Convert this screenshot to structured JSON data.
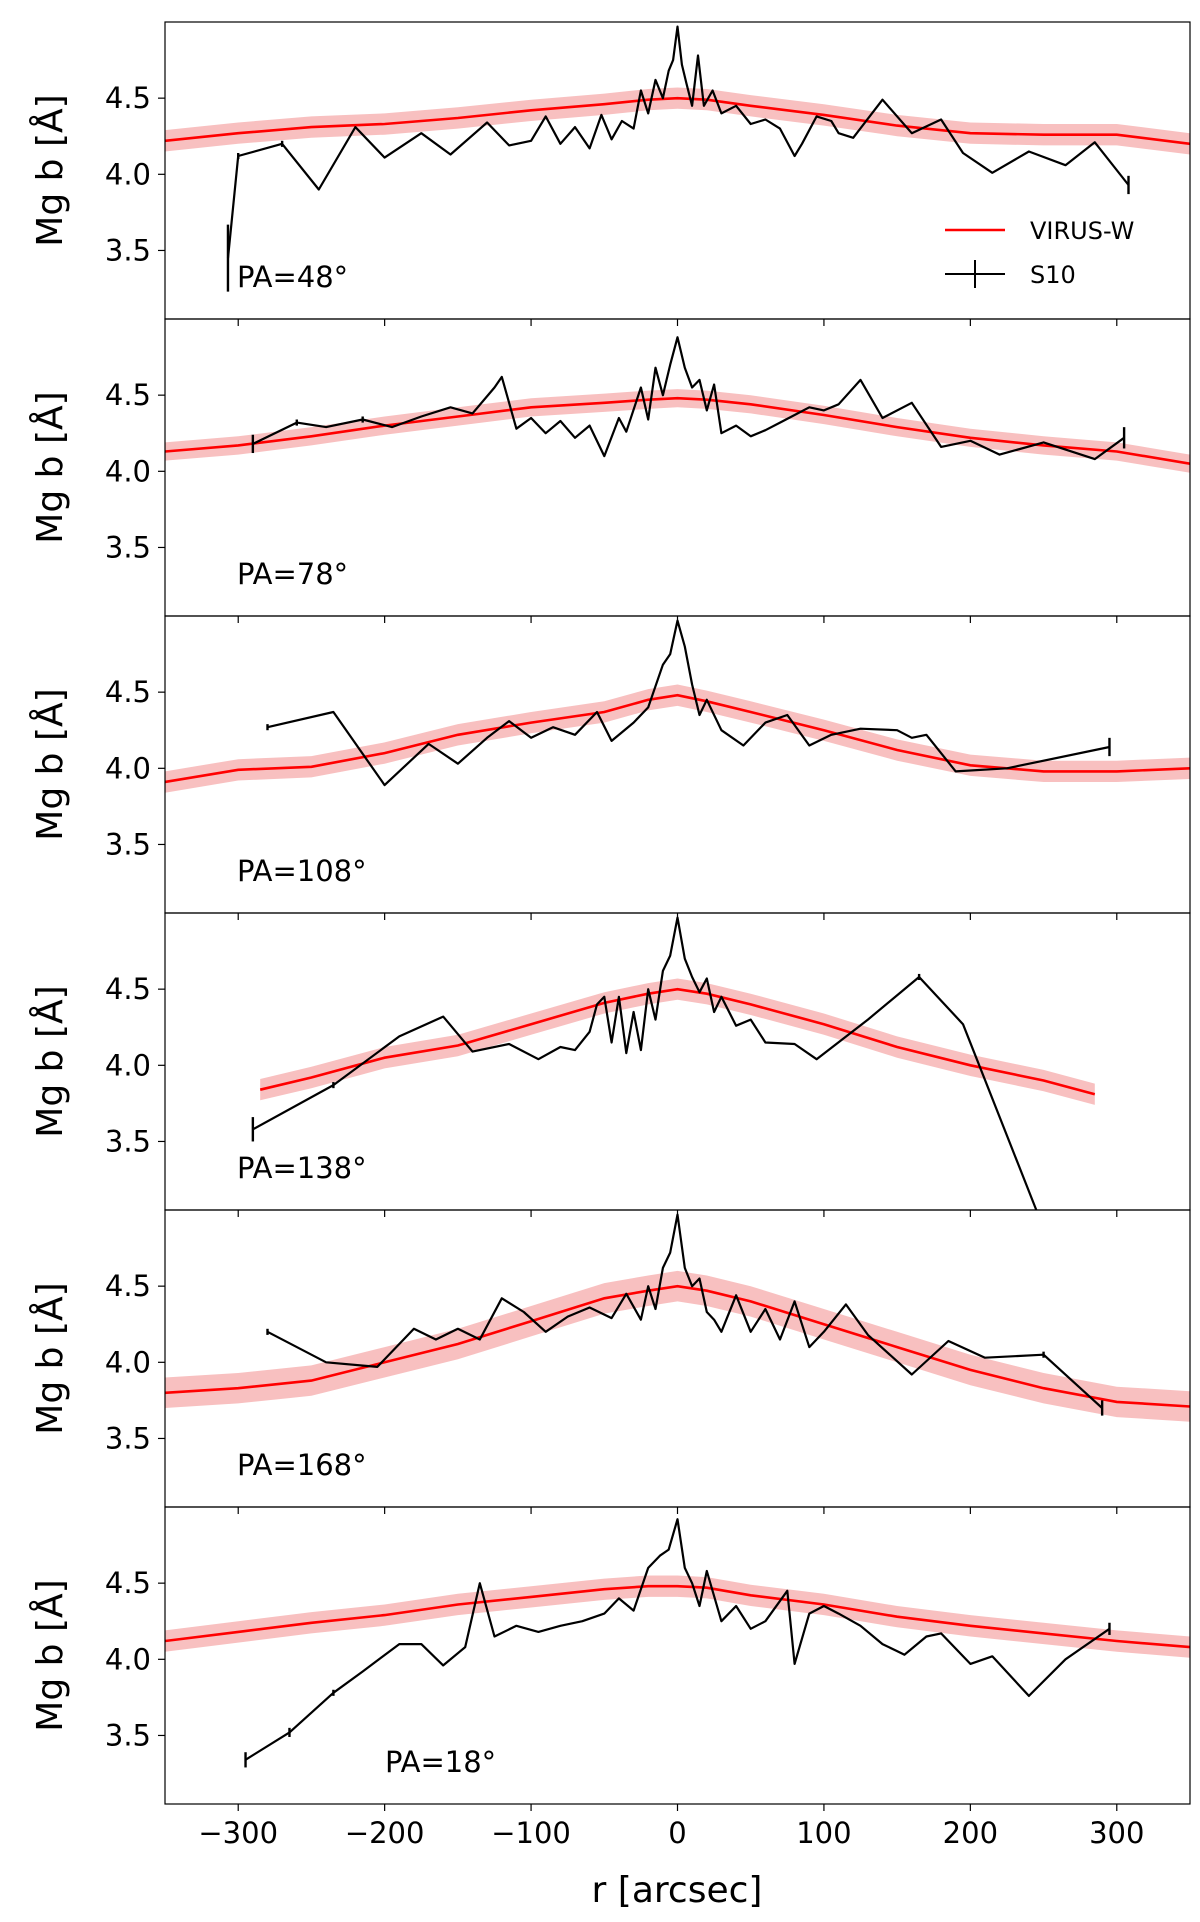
{
  "chart_data": {
    "type": "line",
    "shared_x": {
      "label": "r [arcsec]",
      "xlim": [
        -350,
        350
      ],
      "ticks": [
        -300,
        -200,
        -100,
        0,
        100,
        200,
        300
      ],
      "tick_labels": [
        "−300",
        "−200",
        "−100",
        "0",
        "100",
        "200",
        "300"
      ]
    },
    "ylabel": "Mg b [Å]",
    "ylim": [
      3.05,
      5.0
    ],
    "yticks": [
      3.5,
      4.0,
      4.5
    ],
    "ytick_labels": [
      "3.5",
      "4.0",
      "4.5"
    ],
    "legend": {
      "position": "lower-right of first panel",
      "entries": [
        {
          "label": "VIRUS-W",
          "color": "#ff0000",
          "style": "line"
        },
        {
          "label": "S10",
          "color": "#000000",
          "style": "errorbar"
        }
      ]
    },
    "colors": {
      "model": "#ff0000",
      "band": "#f7b5b5",
      "data": "#000000"
    },
    "panels": [
      {
        "pa_label": "PA=48°",
        "model": {
          "x": [
            -350,
            -300,
            -250,
            -200,
            -150,
            -100,
            -50,
            -20,
            0,
            20,
            50,
            100,
            150,
            200,
            250,
            300,
            350
          ],
          "y": [
            4.22,
            4.27,
            4.31,
            4.33,
            4.37,
            4.42,
            4.46,
            4.49,
            4.5,
            4.49,
            4.45,
            4.39,
            4.32,
            4.27,
            4.26,
            4.26,
            4.2
          ],
          "err": 0.07
        },
        "s10": {
          "x": [
            -307,
            -300,
            -270,
            -245,
            -220,
            -200,
            -175,
            -155,
            -130,
            -115,
            -100,
            -90,
            -80,
            -70,
            -60,
            -52,
            -45,
            -38,
            -30,
            -25,
            -20,
            -15,
            -10,
            -6,
            -3,
            0,
            3,
            6,
            10,
            14,
            18,
            24,
            30,
            40,
            50,
            60,
            70,
            80,
            85,
            95,
            105,
            110,
            120,
            140,
            160,
            180,
            195,
            215,
            240,
            265,
            285,
            308
          ],
          "y": [
            3.45,
            4.12,
            4.2,
            3.9,
            4.31,
            4.11,
            4.27,
            4.13,
            4.34,
            4.19,
            4.22,
            4.38,
            4.2,
            4.31,
            4.17,
            4.39,
            4.23,
            4.35,
            4.3,
            4.55,
            4.4,
            4.62,
            4.5,
            4.68,
            4.75,
            4.97,
            4.72,
            4.6,
            4.45,
            4.78,
            4.45,
            4.55,
            4.4,
            4.45,
            4.33,
            4.36,
            4.3,
            4.12,
            4.2,
            4.38,
            4.35,
            4.27,
            4.24,
            4.49,
            4.27,
            4.36,
            4.14,
            4.01,
            4.15,
            4.06,
            4.21,
            3.93
          ],
          "errorbars": [
            {
              "x": -307,
              "y": 3.45,
              "err": 0.22
            },
            {
              "x": -300,
              "y": 4.12,
              "err": 0.02
            },
            {
              "x": -270,
              "y": 4.2,
              "err": 0.02
            },
            {
              "x": 308,
              "y": 3.93,
              "err": 0.06
            }
          ]
        }
      },
      {
        "pa_label": "PA=78°",
        "model": {
          "x": [
            -350,
            -300,
            -250,
            -200,
            -150,
            -100,
            -50,
            -20,
            0,
            20,
            50,
            100,
            150,
            200,
            250,
            300,
            350
          ],
          "y": [
            4.13,
            4.17,
            4.23,
            4.3,
            4.36,
            4.42,
            4.45,
            4.47,
            4.48,
            4.47,
            4.44,
            4.37,
            4.29,
            4.22,
            4.17,
            4.13,
            4.05
          ],
          "err": 0.06
        },
        "s10": {
          "x": [
            -290,
            -260,
            -240,
            -215,
            -195,
            -175,
            -155,
            -140,
            -125,
            -120,
            -110,
            -100,
            -90,
            -80,
            -70,
            -60,
            -50,
            -40,
            -35,
            -25,
            -20,
            -15,
            -10,
            -5,
            0,
            5,
            10,
            15,
            20,
            25,
            30,
            40,
            50,
            60,
            70,
            80,
            90,
            100,
            110,
            125,
            140,
            160,
            180,
            200,
            220,
            250,
            285,
            305
          ],
          "y": [
            4.18,
            4.32,
            4.29,
            4.34,
            4.29,
            4.36,
            4.42,
            4.38,
            4.55,
            4.62,
            4.28,
            4.35,
            4.25,
            4.33,
            4.22,
            4.3,
            4.1,
            4.35,
            4.26,
            4.55,
            4.34,
            4.68,
            4.5,
            4.7,
            4.88,
            4.68,
            4.55,
            4.6,
            4.4,
            4.57,
            4.25,
            4.3,
            4.23,
            4.27,
            4.32,
            4.37,
            4.42,
            4.4,
            4.44,
            4.6,
            4.35,
            4.45,
            4.16,
            4.2,
            4.11,
            4.19,
            4.08,
            4.22
          ],
          "errorbars": [
            {
              "x": -290,
              "y": 4.18,
              "err": 0.06
            },
            {
              "x": -260,
              "y": 4.32,
              "err": 0.02
            },
            {
              "x": -215,
              "y": 4.34,
              "err": 0.02
            },
            {
              "x": 305,
              "y": 4.22,
              "err": 0.07
            }
          ]
        }
      },
      {
        "pa_label": "PA=108°",
        "model": {
          "x": [
            -350,
            -300,
            -250,
            -200,
            -150,
            -100,
            -50,
            -20,
            0,
            20,
            50,
            100,
            150,
            200,
            250,
            300,
            350
          ],
          "y": [
            3.91,
            3.99,
            4.01,
            4.1,
            4.22,
            4.3,
            4.37,
            4.45,
            4.48,
            4.44,
            4.37,
            4.25,
            4.12,
            4.02,
            3.98,
            3.98,
            4.0
          ],
          "err": 0.07
        },
        "s10": {
          "x": [
            -280,
            -235,
            -200,
            -170,
            -150,
            -130,
            -115,
            -100,
            -85,
            -70,
            -55,
            -45,
            -30,
            -20,
            -10,
            -5,
            0,
            5,
            10,
            15,
            20,
            30,
            45,
            60,
            75,
            90,
            105,
            125,
            150,
            160,
            170,
            190,
            225,
            295
          ],
          "y": [
            4.27,
            4.37,
            3.89,
            4.16,
            4.03,
            4.2,
            4.31,
            4.2,
            4.27,
            4.22,
            4.37,
            4.18,
            4.3,
            4.4,
            4.68,
            4.75,
            4.97,
            4.8,
            4.55,
            4.35,
            4.45,
            4.25,
            4.15,
            4.3,
            4.35,
            4.15,
            4.22,
            4.26,
            4.25,
            4.2,
            4.22,
            3.98,
            4.0,
            4.14
          ],
          "errorbars": [
            {
              "x": -280,
              "y": 4.27,
              "err": 0.02
            },
            {
              "x": 295,
              "y": 4.14,
              "err": 0.06
            }
          ]
        }
      },
      {
        "pa_label": "PA=138°",
        "model": {
          "x": [
            -285,
            -250,
            -200,
            -150,
            -100,
            -50,
            -20,
            0,
            20,
            50,
            100,
            150,
            200,
            250,
            285
          ],
          "y": [
            3.84,
            3.92,
            4.05,
            4.13,
            4.27,
            4.41,
            4.47,
            4.5,
            4.47,
            4.4,
            4.27,
            4.12,
            4.0,
            3.9,
            3.81
          ],
          "err": 0.07
        },
        "s10": {
          "x": [
            -290,
            -235,
            -190,
            -160,
            -140,
            -115,
            -95,
            -80,
            -70,
            -60,
            -55,
            -50,
            -45,
            -40,
            -35,
            -30,
            -25,
            -20,
            -15,
            -10,
            -5,
            0,
            5,
            10,
            15,
            20,
            25,
            30,
            40,
            50,
            60,
            80,
            95,
            130,
            165,
            195,
            245
          ],
          "y": [
            3.58,
            3.87,
            4.19,
            4.32,
            4.09,
            4.14,
            4.04,
            4.12,
            4.1,
            4.22,
            4.4,
            4.45,
            4.15,
            4.45,
            4.08,
            4.35,
            4.1,
            4.5,
            4.3,
            4.62,
            4.72,
            4.97,
            4.7,
            4.58,
            4.48,
            4.57,
            4.35,
            4.45,
            4.26,
            4.3,
            4.15,
            4.14,
            4.04,
            4.3,
            4.58,
            4.27,
            3.05
          ],
          "errorbars": [
            {
              "x": -290,
              "y": 3.58,
              "err": 0.08
            },
            {
              "x": -235,
              "y": 3.87,
              "err": 0.02
            },
            {
              "x": 165,
              "y": 4.58,
              "err": 0.02
            }
          ]
        }
      },
      {
        "pa_label": "PA=168°",
        "model": {
          "x": [
            -350,
            -300,
            -250,
            -200,
            -150,
            -100,
            -50,
            -20,
            0,
            20,
            50,
            100,
            150,
            200,
            250,
            300,
            350
          ],
          "y": [
            3.8,
            3.83,
            3.88,
            4.0,
            4.12,
            4.27,
            4.42,
            4.47,
            4.5,
            4.47,
            4.4,
            4.25,
            4.1,
            3.95,
            3.83,
            3.74,
            3.71
          ],
          "err": 0.1
        },
        "s10": {
          "x": [
            -280,
            -240,
            -205,
            -180,
            -165,
            -150,
            -135,
            -120,
            -105,
            -90,
            -75,
            -60,
            -45,
            -35,
            -25,
            -20,
            -15,
            -10,
            -5,
            0,
            5,
            10,
            15,
            20,
            25,
            30,
            40,
            50,
            60,
            70,
            80,
            90,
            100,
            115,
            130,
            160,
            185,
            210,
            250,
            290
          ],
          "y": [
            4.2,
            4.0,
            3.97,
            4.22,
            4.15,
            4.22,
            4.15,
            4.42,
            4.33,
            4.2,
            4.3,
            4.36,
            4.29,
            4.45,
            4.28,
            4.5,
            4.35,
            4.62,
            4.72,
            4.97,
            4.62,
            4.5,
            4.55,
            4.33,
            4.28,
            4.2,
            4.44,
            4.2,
            4.35,
            4.15,
            4.4,
            4.1,
            4.2,
            4.38,
            4.18,
            3.92,
            4.14,
            4.03,
            4.05,
            3.7
          ],
          "errorbars": [
            {
              "x": -280,
              "y": 4.2,
              "err": 0.02
            },
            {
              "x": 250,
              "y": 4.05,
              "err": 0.02
            },
            {
              "x": 290,
              "y": 3.7,
              "err": 0.05
            }
          ]
        }
      },
      {
        "pa_label": "PA=18°",
        "model": {
          "x": [
            -350,
            -300,
            -250,
            -200,
            -150,
            -100,
            -50,
            -20,
            0,
            20,
            50,
            100,
            150,
            200,
            250,
            300,
            350
          ],
          "y": [
            4.12,
            4.18,
            4.24,
            4.29,
            4.36,
            4.41,
            4.46,
            4.48,
            4.48,
            4.47,
            4.42,
            4.36,
            4.28,
            4.22,
            4.17,
            4.12,
            4.08
          ],
          "err": 0.07
        },
        "s10": {
          "x": [
            -295,
            -265,
            -235,
            -215,
            -190,
            -175,
            -160,
            -145,
            -135,
            -125,
            -110,
            -95,
            -80,
            -65,
            -50,
            -40,
            -30,
            -20,
            -12,
            -6,
            0,
            5,
            10,
            15,
            20,
            30,
            40,
            50,
            60,
            75,
            80,
            90,
            100,
            110,
            125,
            140,
            155,
            170,
            180,
            200,
            215,
            240,
            265,
            295
          ],
          "y": [
            3.34,
            3.52,
            3.78,
            3.92,
            4.1,
            4.1,
            3.96,
            4.08,
            4.5,
            4.15,
            4.22,
            4.18,
            4.22,
            4.25,
            4.3,
            4.4,
            4.32,
            4.6,
            4.68,
            4.72,
            4.92,
            4.6,
            4.5,
            4.35,
            4.58,
            4.25,
            4.35,
            4.2,
            4.25,
            4.45,
            3.97,
            4.3,
            4.35,
            4.3,
            4.22,
            4.1,
            4.03,
            4.15,
            4.17,
            3.97,
            4.02,
            3.76,
            4.0,
            4.2
          ],
          "errorbars": [
            {
              "x": -295,
              "y": 3.34,
              "err": 0.05
            },
            {
              "x": -265,
              "y": 3.52,
              "err": 0.03
            },
            {
              "x": -235,
              "y": 3.78,
              "err": 0.02
            },
            {
              "x": 295,
              "y": 4.2,
              "err": 0.04
            }
          ]
        }
      }
    ]
  }
}
